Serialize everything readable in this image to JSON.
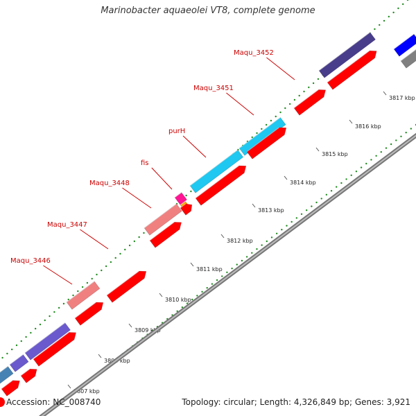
{
  "title": "Marinobacter aquaeolei VT8, complete genome",
  "footer": {
    "accession": "Accession: NC_008740",
    "summary": "Topology: circular; Length: 4,326,849 bp; Genes: 3,921"
  },
  "colors": {
    "cds": "#ff0000",
    "backbone": "#999999",
    "gc_dots": "#228b22",
    "label": "#cc0000",
    "cog_purple": "#6a5acd",
    "cog_darkslate": "#483d8b",
    "cog_pink": "#f08080",
    "cog_cyan": "#1ec8f0",
    "cog_steel": "#4682b4",
    "cog_magenta": "#ff1493",
    "cog_orange": "#ffa500",
    "cog_blue": "#0000ff",
    "cog_gray": "#808080"
  },
  "gene_labels": [
    "Maqu_3446",
    "Maqu_3447",
    "Maqu_3448",
    "fis",
    "purH",
    "Maqu_3451",
    "Maqu_3452"
  ],
  "tick_labels": [
    "3807 kbp",
    "3808 kbp",
    "3809 kbp",
    "3810 kbp",
    "3811 kbp",
    "3812 kbp",
    "3813 kbp",
    "3814 kbp",
    "3815 kbp",
    "3816 kbp",
    "3817 kbp"
  ]
}
